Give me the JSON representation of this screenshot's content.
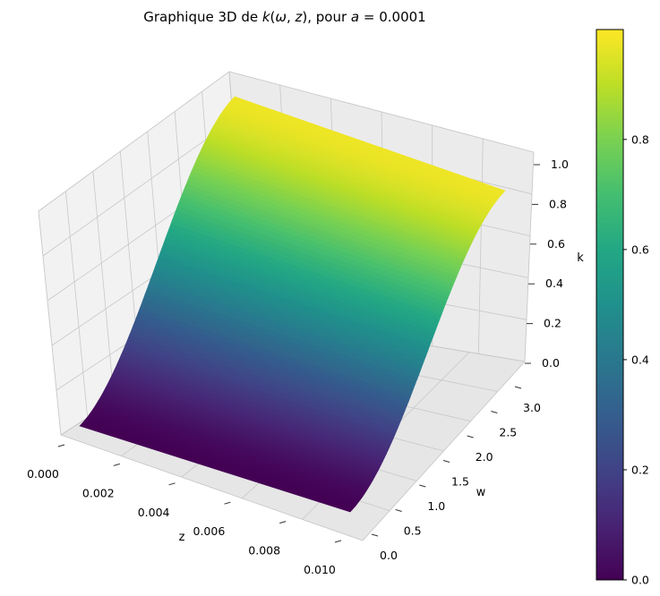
{
  "chart_data": {
    "type": "surface3d",
    "title_parts": [
      {
        "text": "Graphique 3D de ",
        "italic": false
      },
      {
        "text": "k",
        "italic": true
      },
      {
        "text": "(",
        "italic": false
      },
      {
        "text": "ω",
        "italic": true
      },
      {
        "text": ", ",
        "italic": false
      },
      {
        "text": "z",
        "italic": true
      },
      {
        "text": "), pour ",
        "italic": false
      },
      {
        "text": "a",
        "italic": true
      },
      {
        "text": " = 0.0001",
        "italic": false
      }
    ],
    "xlabel": "z",
    "ylabel": "w",
    "zlabel": "k",
    "x_ticks": [
      "0.000",
      "0.002",
      "0.004",
      "0.006",
      "0.008",
      "0.010"
    ],
    "x_tick_values": [
      0,
      0.002,
      0.004,
      0.006,
      0.008,
      0.01
    ],
    "y_ticks": [
      "0.0",
      "0.5",
      "1.0",
      "1.5",
      "2.0",
      "2.5",
      "3.0"
    ],
    "y_tick_values": [
      0,
      0.5,
      1.0,
      1.5,
      2.0,
      2.5,
      3.0
    ],
    "z_ticks": [
      "0.0",
      "0.2",
      "0.4",
      "0.6",
      "0.8",
      "1.0"
    ],
    "z_tick_values": [
      0,
      0.2,
      0.4,
      0.6,
      0.8,
      1.0
    ],
    "x_range": [
      0,
      0.01
    ],
    "y_range": [
      0,
      3.1416
    ],
    "z_range": [
      0,
      1.0
    ],
    "surface": {
      "description_formula": "k = sin(w/2)^2 (nearly independent of z)",
      "w": [
        0,
        0.3927,
        0.7854,
        1.1781,
        1.5708,
        1.9635,
        2.3562,
        2.7489,
        3.1416
      ],
      "k_at_z0": [
        0,
        0.038,
        0.146,
        0.309,
        0.5,
        0.691,
        0.854,
        0.962,
        1.0
      ],
      "k_at_z001": [
        0,
        0.036,
        0.139,
        0.294,
        0.476,
        0.658,
        0.813,
        0.916,
        0.952
      ]
    },
    "colormap": "viridis",
    "colorbar": {
      "ticks": [
        "0.0",
        "0.2",
        "0.4",
        "0.6",
        "0.8"
      ],
      "tick_values": [
        0,
        0.2,
        0.4,
        0.6,
        0.8
      ],
      "range": [
        0,
        0.9996
      ]
    },
    "grid": true
  }
}
